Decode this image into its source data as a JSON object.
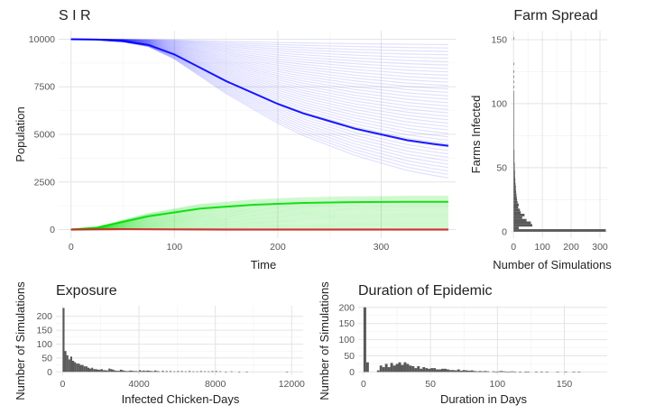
{
  "chart_data": [
    {
      "id": "sir",
      "type": "line",
      "title": "S I R",
      "xlabel": "Time",
      "ylabel": "Population",
      "xlim": [
        -12,
        372
      ],
      "ylim": [
        -450,
        10450
      ],
      "x_ticks": [
        0,
        100,
        200,
        300
      ],
      "y_ticks": [
        0,
        2500,
        5000,
        7500,
        10000
      ],
      "grid": true,
      "legend": "none",
      "series": [
        {
          "color": "#0000ff",
          "values": [
            10000,
            9980,
            9900,
            9700,
            9200,
            8500,
            7800,
            7200,
            6600,
            6100,
            5700,
            5300,
            5000,
            4700,
            4500,
            4400
          ]
        },
        {
          "color": "#00dd00",
          "values": [
            0,
            100,
            400,
            700,
            900,
            1100,
            1200,
            1300,
            1350,
            1400,
            1420,
            1440,
            1450,
            1460,
            1460,
            1460
          ]
        },
        {
          "color": "#cc2222",
          "values": [
            0,
            10,
            20,
            15,
            10,
            5,
            0,
            0,
            0,
            0,
            0,
            0,
            0,
            0,
            0,
            0
          ]
        }
      ],
      "x": [
        0,
        25,
        50,
        75,
        100,
        125,
        150,
        175,
        200,
        225,
        250,
        275,
        300,
        325,
        350,
        365
      ]
    },
    {
      "id": "farm",
      "type": "bar",
      "orientation": "horizontal",
      "title": "Farm Spread",
      "xlabel": "Number of Simulations",
      "ylabel": "Farms Infected",
      "xlim": [
        -10,
        325
      ],
      "ylim": [
        -5,
        157
      ],
      "x_ticks": [
        0,
        100,
        200,
        300
      ],
      "y_ticks": [
        0,
        50,
        100,
        150
      ],
      "grid": true,
      "bin_width": 2,
      "bins": [
        [
          1,
          320
        ],
        [
          3,
          18
        ],
        [
          5,
          65
        ],
        [
          7,
          60
        ],
        [
          9,
          45
        ],
        [
          11,
          30
        ],
        [
          13,
          38
        ],
        [
          15,
          25
        ],
        [
          17,
          22
        ],
        [
          19,
          16
        ],
        [
          21,
          18
        ],
        [
          23,
          14
        ],
        [
          25,
          12
        ],
        [
          27,
          11
        ],
        [
          29,
          10
        ],
        [
          31,
          9
        ],
        [
          33,
          8
        ],
        [
          35,
          8
        ],
        [
          37,
          7
        ],
        [
          39,
          6
        ],
        [
          41,
          6
        ],
        [
          43,
          5
        ],
        [
          45,
          5
        ],
        [
          47,
          5
        ],
        [
          49,
          4
        ],
        [
          51,
          4
        ],
        [
          53,
          4
        ],
        [
          55,
          3
        ],
        [
          57,
          3
        ],
        [
          59,
          3
        ],
        [
          61,
          3
        ],
        [
          63,
          3
        ],
        [
          65,
          2
        ],
        [
          67,
          2
        ],
        [
          69,
          2
        ],
        [
          71,
          2
        ],
        [
          73,
          2
        ],
        [
          75,
          2
        ],
        [
          77,
          2
        ],
        [
          79,
          2
        ],
        [
          81,
          1
        ],
        [
          83,
          1
        ],
        [
          85,
          1
        ],
        [
          87,
          1
        ],
        [
          89,
          1
        ],
        [
          91,
          1
        ],
        [
          93,
          1
        ],
        [
          95,
          1
        ],
        [
          97,
          1
        ],
        [
          99,
          1
        ],
        [
          101,
          1
        ],
        [
          103,
          1
        ],
        [
          105,
          1
        ],
        [
          107,
          1
        ],
        [
          109,
          1
        ],
        [
          113,
          1
        ],
        [
          117,
          1
        ],
        [
          121,
          1
        ],
        [
          125,
          1
        ],
        [
          131,
          1
        ],
        [
          151,
          1
        ]
      ]
    },
    {
      "id": "exposure",
      "type": "bar",
      "title": "Exposure",
      "xlabel": "Infected Chicken-Days",
      "ylabel": "Number of Simulations",
      "xlim": [
        -350,
        12600
      ],
      "ylim": [
        -12,
        238
      ],
      "x_ticks": [
        0,
        4000,
        8000,
        12000
      ],
      "y_ticks": [
        0,
        50,
        100,
        150,
        200
      ],
      "grid": true,
      "bin_width": 100,
      "bins": [
        [
          50,
          230
        ],
        [
          150,
          75
        ],
        [
          250,
          60
        ],
        [
          350,
          45
        ],
        [
          450,
          55
        ],
        [
          550,
          40
        ],
        [
          650,
          35
        ],
        [
          750,
          30
        ],
        [
          850,
          30
        ],
        [
          950,
          25
        ],
        [
          1050,
          25
        ],
        [
          1150,
          20
        ],
        [
          1250,
          20
        ],
        [
          1350,
          15
        ],
        [
          1450,
          12
        ],
        [
          1550,
          15
        ],
        [
          1650,
          10
        ],
        [
          1750,
          10
        ],
        [
          1850,
          8
        ],
        [
          1950,
          8
        ],
        [
          2050,
          10
        ],
        [
          2150,
          6
        ],
        [
          2250,
          6
        ],
        [
          2350,
          5
        ],
        [
          2450,
          12
        ],
        [
          2550,
          10
        ],
        [
          2650,
          8
        ],
        [
          2750,
          5
        ],
        [
          2850,
          4
        ],
        [
          2950,
          4
        ],
        [
          3050,
          8
        ],
        [
          3150,
          6
        ],
        [
          3250,
          4
        ],
        [
          3350,
          3
        ],
        [
          3450,
          3
        ],
        [
          3550,
          5
        ],
        [
          3650,
          4
        ],
        [
          3750,
          3
        ],
        [
          3850,
          3
        ],
        [
          3950,
          2
        ],
        [
          4050,
          6
        ],
        [
          4150,
          3
        ],
        [
          4250,
          5
        ],
        [
          4350,
          3
        ],
        [
          4450,
          5
        ],
        [
          4550,
          4
        ],
        [
          4650,
          3
        ],
        [
          4750,
          2
        ],
        [
          4850,
          5
        ],
        [
          4950,
          3
        ],
        [
          5050,
          2
        ],
        [
          5250,
          4
        ],
        [
          5450,
          3
        ],
        [
          5650,
          3
        ],
        [
          5850,
          2
        ],
        [
          6050,
          3
        ],
        [
          6250,
          3
        ],
        [
          6450,
          2
        ],
        [
          6650,
          3
        ],
        [
          6850,
          2
        ],
        [
          7050,
          2
        ],
        [
          7250,
          3
        ],
        [
          7450,
          2
        ],
        [
          7650,
          2
        ],
        [
          7850,
          3
        ],
        [
          8050,
          3
        ],
        [
          8250,
          2
        ],
        [
          8550,
          1
        ],
        [
          8850,
          2
        ],
        [
          9250,
          1
        ],
        [
          9650,
          1
        ],
        [
          11750,
          1
        ]
      ]
    },
    {
      "id": "duration",
      "type": "bar",
      "title": "Duration of Epidemic",
      "xlabel": "Duration in Days",
      "ylabel": "Number of Simulations",
      "xlim": [
        -4,
        182
      ],
      "ylim": [
        -10,
        205
      ],
      "x_ticks": [
        0,
        50,
        100,
        150
      ],
      "y_ticks": [
        0,
        50,
        100,
        150,
        200
      ],
      "grid": true,
      "bin_width": 2,
      "bins": [
        [
          1,
          200
        ],
        [
          3,
          30
        ],
        [
          11,
          5
        ],
        [
          13,
          20
        ],
        [
          15,
          15
        ],
        [
          17,
          25
        ],
        [
          19,
          15
        ],
        [
          21,
          28
        ],
        [
          23,
          20
        ],
        [
          25,
          25
        ],
        [
          27,
          30
        ],
        [
          29,
          22
        ],
        [
          31,
          30
        ],
        [
          33,
          25
        ],
        [
          35,
          20
        ],
        [
          37,
          18
        ],
        [
          39,
          12
        ],
        [
          41,
          18
        ],
        [
          43,
          10
        ],
        [
          45,
          15
        ],
        [
          47,
          12
        ],
        [
          49,
          10
        ],
        [
          51,
          12
        ],
        [
          53,
          12
        ],
        [
          55,
          8
        ],
        [
          57,
          8
        ],
        [
          59,
          10
        ],
        [
          61,
          10
        ],
        [
          63,
          8
        ],
        [
          65,
          6
        ],
        [
          67,
          6
        ],
        [
          69,
          5
        ],
        [
          71,
          8
        ],
        [
          73,
          4
        ],
        [
          75,
          6
        ],
        [
          77,
          5
        ],
        [
          79,
          4
        ],
        [
          81,
          5
        ],
        [
          83,
          3
        ],
        [
          85,
          2
        ],
        [
          87,
          3
        ],
        [
          89,
          2
        ],
        [
          91,
          3
        ],
        [
          93,
          2
        ],
        [
          97,
          2
        ],
        [
          99,
          1
        ],
        [
          101,
          2
        ],
        [
          103,
          3
        ],
        [
          105,
          2
        ],
        [
          107,
          1
        ],
        [
          109,
          1
        ],
        [
          111,
          2
        ],
        [
          113,
          1
        ],
        [
          117,
          1
        ],
        [
          121,
          1
        ],
        [
          123,
          1
        ],
        [
          129,
          1
        ],
        [
          133,
          1
        ],
        [
          137,
          1
        ],
        [
          145,
          1
        ],
        [
          151,
          1
        ],
        [
          157,
          1
        ],
        [
          161,
          1
        ]
      ]
    }
  ]
}
